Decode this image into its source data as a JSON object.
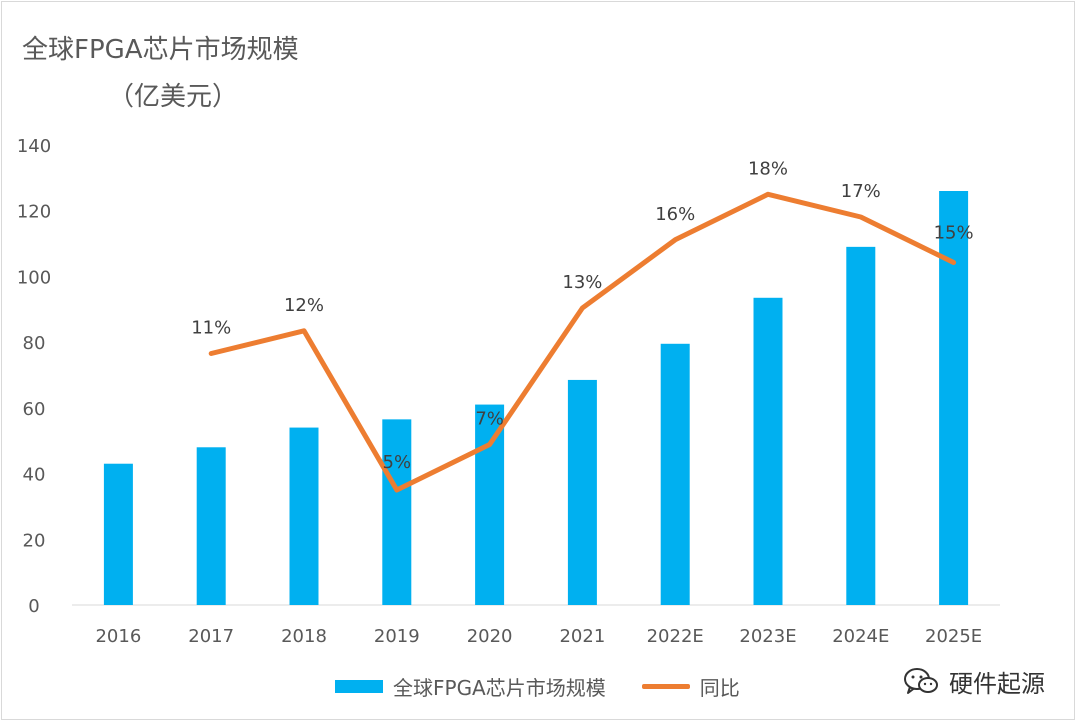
{
  "chart_data": {
    "type": "bar",
    "title": "全球FPGA芯片市场规模",
    "subtitle": "（亿美元）",
    "categories": [
      "2016",
      "2017",
      "2018",
      "2019",
      "2020",
      "2021",
      "2022E",
      "2023E",
      "2024E",
      "2025E"
    ],
    "series": [
      {
        "name": "全球FPGA芯片市场规模",
        "type": "bar",
        "color": "#00b0f0",
        "values": [
          43,
          48,
          54,
          56.5,
          61,
          68.5,
          79.5,
          93.5,
          109,
          126
        ]
      },
      {
        "name": "同比",
        "type": "line",
        "color": "#ed7d31",
        "values": [
          null,
          11,
          12,
          5,
          7,
          13,
          16,
          18,
          17,
          15
        ],
        "labels": [
          "",
          "11%",
          "12%",
          "5%",
          "7%",
          "13%",
          "16%",
          "18%",
          "17%",
          "15%"
        ]
      }
    ],
    "ylim": [
      0,
      140
    ],
    "yticks": [
      "0",
      "20",
      "40",
      "60",
      "80",
      "100",
      "120",
      "140"
    ],
    "grid": false,
    "legend_placement": "bottom"
  },
  "watermark": {
    "icon": "wechat-icon",
    "text": "硬件起源"
  }
}
